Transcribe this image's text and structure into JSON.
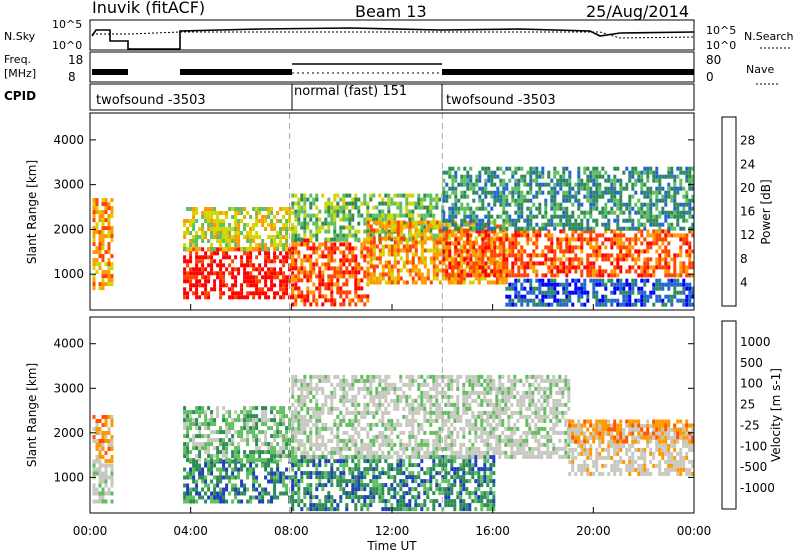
{
  "header": {
    "station": "Inuvik (fitACF)",
    "beam": "Beam 13",
    "date": "25/Aug/2014"
  },
  "noise_panel": {
    "left_label": "N.Sky",
    "left_ticks": [
      "10^5",
      "10^0"
    ],
    "right_ticks": [
      "10^5",
      "10^0"
    ],
    "right_label": "N.Search"
  },
  "freq_panel": {
    "left_label_1": "Freq.",
    "left_label_2": "[MHz]",
    "left_ticks": [
      "18",
      "8"
    ],
    "right_ticks": [
      "80",
      "0"
    ],
    "right_label": "Nave"
  },
  "cpid_panel": {
    "label": "CPID",
    "segments": [
      {
        "name": "twofsound -3503",
        "start_hour": 0.75,
        "end_hour": 7.93
      },
      {
        "name": "normal (fast) 151",
        "start_hour": 7.93,
        "end_hour": 14.0
      },
      {
        "name": "twofsound -3503",
        "start_hour": 14.0,
        "end_hour": 24.0
      }
    ]
  },
  "x_axis": {
    "label": "Time UT",
    "ticks": [
      "00:00",
      "04:00",
      "08:00",
      "12:00",
      "16:00",
      "20:00",
      "00:00"
    ]
  },
  "chart_data": [
    {
      "type": "heatmap",
      "quantity": "Power",
      "xlabel": "Time UT",
      "ylabel": "Slant Range [km]",
      "xlim": [
        0,
        24
      ],
      "ylim": [
        200,
        4600
      ],
      "yticks": [
        "4000",
        "3000",
        "2000",
        "1000"
      ],
      "colorbar_label": "Power [dB]",
      "colorbar_ticks": [
        "28",
        "24",
        "20",
        "16",
        "12",
        "8",
        "4"
      ],
      "colors": [
        "#0000ff",
        "#2266cc",
        "#2e8b57",
        "#5fbf5f",
        "#d4d400",
        "#ff9900",
        "#ff4400",
        "#ff0000"
      ],
      "regions": [
        {
          "t0": 0.1,
          "t1": 0.9,
          "r0": 700,
          "r1": 2700,
          "level": 5
        },
        {
          "t0": 3.7,
          "t1": 8.0,
          "r0": 500,
          "r1": 1600,
          "level": 7
        },
        {
          "t0": 3.7,
          "t1": 8.0,
          "r0": 1600,
          "r1": 2500,
          "level": 4
        },
        {
          "t0": 8.0,
          "t1": 11.0,
          "r0": 300,
          "r1": 1800,
          "level": 6
        },
        {
          "t0": 8.0,
          "t1": 14.0,
          "r0": 1800,
          "r1": 2800,
          "level": 3
        },
        {
          "t0": 11.0,
          "t1": 16.5,
          "r0": 800,
          "r1": 2200,
          "level": 5
        },
        {
          "t0": 14.0,
          "t1": 24.0,
          "r0": 1000,
          "r1": 2000,
          "level": 6
        },
        {
          "t0": 14.0,
          "t1": 24.0,
          "r0": 2000,
          "r1": 3400,
          "level": 2
        },
        {
          "t0": 16.5,
          "t1": 24.0,
          "r0": 300,
          "r1": 900,
          "level": 1
        }
      ]
    },
    {
      "type": "heatmap",
      "quantity": "Velocity",
      "xlabel": "Time UT",
      "ylabel": "Slant Range [km]",
      "xlim": [
        0,
        24
      ],
      "ylim": [
        200,
        4600
      ],
      "yticks": [
        "4000",
        "3000",
        "2000",
        "1000"
      ],
      "colorbar_label": "Velocity [m s-1]",
      "colorbar_ticks": [
        "1000",
        "500",
        "100",
        "25",
        "-25",
        "-100",
        "-500",
        "-1000"
      ],
      "colors": [
        "#1f3fbf",
        "#2e8b57",
        "#5fbf5f",
        "#c8c8c0",
        "#c8c8c0",
        "#ff9900",
        "#ff5500",
        "#ff0000"
      ],
      "regions": [
        {
          "t0": 0.1,
          "t1": 0.9,
          "r0": 1400,
          "r1": 2400,
          "level": 5
        },
        {
          "t0": 0.1,
          "t1": 0.9,
          "r0": 500,
          "r1": 1400,
          "level": 3
        },
        {
          "t0": 3.7,
          "t1": 8.0,
          "r0": 500,
          "r1": 1400,
          "level": 1
        },
        {
          "t0": 3.7,
          "t1": 8.0,
          "r0": 1400,
          "r1": 2600,
          "level": 2
        },
        {
          "t0": 8.0,
          "t1": 16.0,
          "r0": 300,
          "r1": 1500,
          "level": 1
        },
        {
          "t0": 8.0,
          "t1": 19.0,
          "r0": 1500,
          "r1": 3300,
          "level": 3
        },
        {
          "t0": 19.0,
          "t1": 24.0,
          "r0": 1100,
          "r1": 2200,
          "level": 4
        },
        {
          "t0": 19.0,
          "t1": 24.0,
          "r0": 1800,
          "r1": 2300,
          "level": 5
        }
      ]
    }
  ]
}
